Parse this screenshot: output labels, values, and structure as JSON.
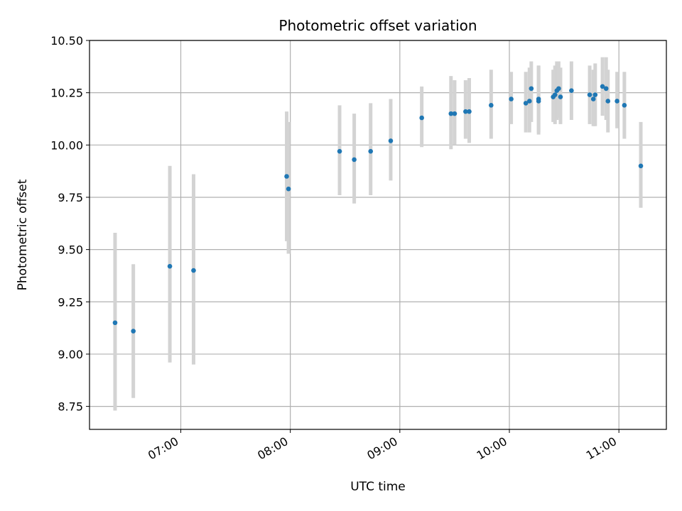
{
  "chart_data": {
    "type": "scatter",
    "title": "Photometric offset variation",
    "xlabel": "UTC time",
    "ylabel": "Photometric offset",
    "xlim": [
      "06:10",
      "11:26"
    ],
    "ylim": [
      8.64,
      10.5
    ],
    "xticks": [
      "07:00",
      "08:00",
      "09:00",
      "10:00",
      "11:00"
    ],
    "yticks": [
      "8.75",
      "9.00",
      "9.25",
      "9.50",
      "9.75",
      "10.00",
      "10.25",
      "10.50"
    ],
    "grid": true,
    "colors": {
      "point": "#1f77b4",
      "errorbar": "#d3d3d3",
      "grid": "#b0b0b0"
    },
    "points": [
      {
        "t": "06:24",
        "y": 9.15,
        "lo": 8.73,
        "hi": 9.58
      },
      {
        "t": "06:34",
        "y": 9.11,
        "lo": 8.79,
        "hi": 9.43
      },
      {
        "t": "06:54",
        "y": 9.42,
        "lo": 8.96,
        "hi": 9.9
      },
      {
        "t": "07:07",
        "y": 9.4,
        "lo": 8.95,
        "hi": 9.86
      },
      {
        "t": "07:58",
        "y": 9.85,
        "lo": 9.54,
        "hi": 10.16
      },
      {
        "t": "07:59",
        "y": 9.79,
        "lo": 9.48,
        "hi": 10.11
      },
      {
        "t": "08:27",
        "y": 9.97,
        "lo": 9.76,
        "hi": 10.19
      },
      {
        "t": "08:35",
        "y": 9.93,
        "lo": 9.72,
        "hi": 10.15
      },
      {
        "t": "08:44",
        "y": 9.97,
        "lo": 9.76,
        "hi": 10.2
      },
      {
        "t": "08:55",
        "y": 10.02,
        "lo": 9.83,
        "hi": 10.22
      },
      {
        "t": "09:12",
        "y": 10.13,
        "lo": 9.99,
        "hi": 10.28
      },
      {
        "t": "09:28",
        "y": 10.15,
        "lo": 9.98,
        "hi": 10.33
      },
      {
        "t": "09:30",
        "y": 10.15,
        "lo": 10.0,
        "hi": 10.31
      },
      {
        "t": "09:36",
        "y": 10.16,
        "lo": 10.03,
        "hi": 10.31
      },
      {
        "t": "09:38",
        "y": 10.16,
        "lo": 10.01,
        "hi": 10.32
      },
      {
        "t": "09:50",
        "y": 10.19,
        "lo": 10.03,
        "hi": 10.36
      },
      {
        "t": "10:01",
        "y": 10.22,
        "lo": 10.1,
        "hi": 10.35
      },
      {
        "t": "10:09",
        "y": 10.2,
        "lo": 10.06,
        "hi": 10.35
      },
      {
        "t": "10:11",
        "y": 10.21,
        "lo": 10.06,
        "hi": 10.37
      },
      {
        "t": "10:12",
        "y": 10.27,
        "lo": 10.11,
        "hi": 10.4
      },
      {
        "t": "10:16",
        "y": 10.22,
        "lo": 10.06,
        "hi": 10.38
      },
      {
        "t": "10:16",
        "y": 10.21,
        "lo": 10.05,
        "hi": 10.38
      },
      {
        "t": "10:24",
        "y": 10.23,
        "lo": 10.11,
        "hi": 10.36
      },
      {
        "t": "10:25",
        "y": 10.24,
        "lo": 10.1,
        "hi": 10.38
      },
      {
        "t": "10:26",
        "y": 10.26,
        "lo": 10.12,
        "hi": 10.4
      },
      {
        "t": "10:27",
        "y": 10.27,
        "lo": 10.13,
        "hi": 10.4
      },
      {
        "t": "10:28",
        "y": 10.23,
        "lo": 10.1,
        "hi": 10.37
      },
      {
        "t": "10:34",
        "y": 10.26,
        "lo": 10.12,
        "hi": 10.4
      },
      {
        "t": "10:44",
        "y": 10.24,
        "lo": 10.1,
        "hi": 10.38
      },
      {
        "t": "10:46",
        "y": 10.22,
        "lo": 10.09,
        "hi": 10.36
      },
      {
        "t": "10:47",
        "y": 10.24,
        "lo": 10.09,
        "hi": 10.39
      },
      {
        "t": "10:51",
        "y": 10.28,
        "lo": 10.14,
        "hi": 10.42
      },
      {
        "t": "10:53",
        "y": 10.27,
        "lo": 10.12,
        "hi": 10.42
      },
      {
        "t": "10:54",
        "y": 10.21,
        "lo": 10.06,
        "hi": 10.36
      },
      {
        "t": "10:59",
        "y": 10.21,
        "lo": 10.08,
        "hi": 10.35
      },
      {
        "t": "11:03",
        "y": 10.19,
        "lo": 10.03,
        "hi": 10.35
      },
      {
        "t": "11:12",
        "y": 9.9,
        "lo": 9.7,
        "hi": 10.11
      }
    ]
  }
}
